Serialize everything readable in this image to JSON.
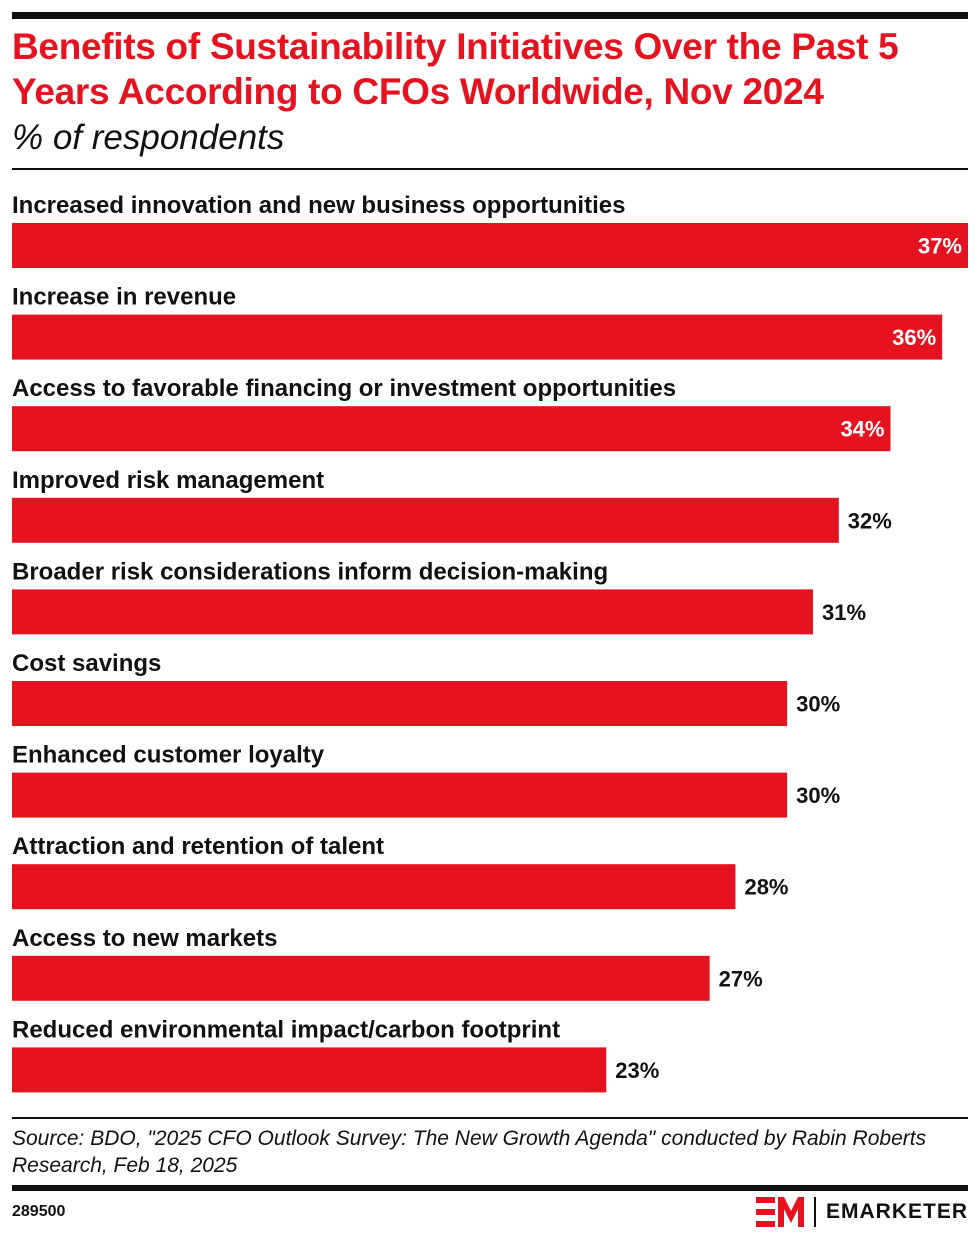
{
  "header": {
    "title": "Benefits of Sustainability Initiatives Over the Past 5 Years According to CFOs Worldwide, Nov 2024",
    "subtitle": "% of respondents"
  },
  "chart_data": {
    "type": "bar",
    "orientation": "horizontal",
    "title": "Benefits of Sustainability Initiatives Over the Past 5 Years According to CFOs Worldwide, Nov 2024",
    "subtitle": "% of respondents",
    "categories": [
      "Increased innovation and new business opportunities",
      "Increase in revenue",
      "Access to favorable financing or investment opportunities",
      "Improved risk management",
      "Broader risk considerations inform decision-making",
      "Cost savings",
      "Enhanced customer loyalty",
      "Attraction and retention of talent",
      "Access to new markets",
      "Reduced environmental impact/carbon footprint"
    ],
    "values": [
      37,
      36,
      34,
      32,
      31,
      30,
      30,
      28,
      27,
      23
    ],
    "value_labels": [
      "37%",
      "36%",
      "34%",
      "32%",
      "31%",
      "30%",
      "30%",
      "28%",
      "27%",
      "23%"
    ],
    "xlim": [
      0,
      37
    ],
    "bar_color": "#e5121f",
    "grid": false,
    "legend": "none"
  },
  "footer": {
    "source": "Source: BDO, \"2025 CFO Outlook Survey: The New Growth Agenda\" conducted by Rabin Roberts Research, Feb 18, 2025",
    "chart_id": "289500",
    "brand": "EMARKETER",
    "brand_color": "#e5121f"
  }
}
